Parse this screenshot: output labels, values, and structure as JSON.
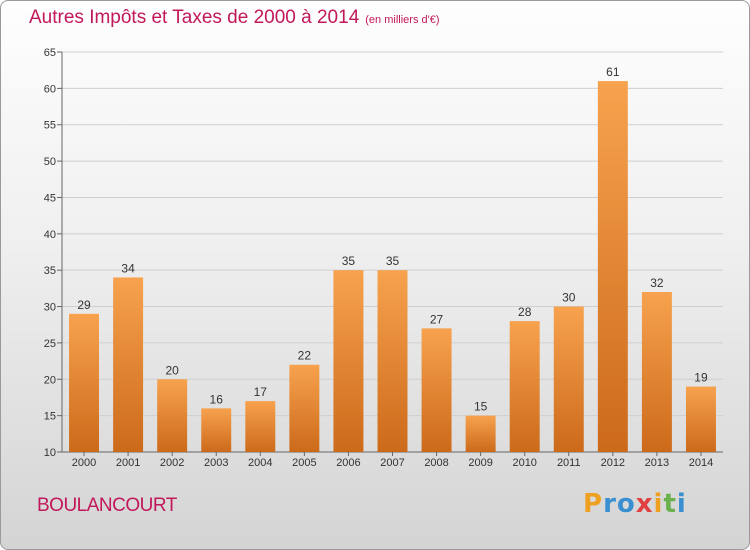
{
  "header": {
    "title": "Autres Impôts et Taxes de 2000 à 2014",
    "subtitle": "(en milliers d'€)"
  },
  "footer": {
    "commune": "BOULANCOURT",
    "logo": "Proxiti"
  },
  "colors": {
    "title": "#c2185b",
    "bar_top": "#f7a24e",
    "bar_bottom": "#cc6a1a"
  },
  "chart_data": {
    "type": "bar",
    "title": "Autres Impôts et Taxes de 2000 à 2014",
    "subtitle": "(en milliers d'€)",
    "xlabel": "",
    "ylabel": "",
    "categories": [
      "2000",
      "2001",
      "2002",
      "2003",
      "2004",
      "2005",
      "2006",
      "2007",
      "2008",
      "2009",
      "2010",
      "2011",
      "2012",
      "2013",
      "2014"
    ],
    "values": [
      29,
      34,
      20,
      16,
      17,
      22,
      35,
      35,
      27,
      15,
      28,
      30,
      61,
      32,
      19
    ],
    "ylim": [
      10,
      65
    ],
    "yticks": [
      10,
      15,
      20,
      25,
      30,
      35,
      40,
      45,
      50,
      55,
      60,
      65
    ],
    "grid": true,
    "legend": "none",
    "data_labels": true
  }
}
